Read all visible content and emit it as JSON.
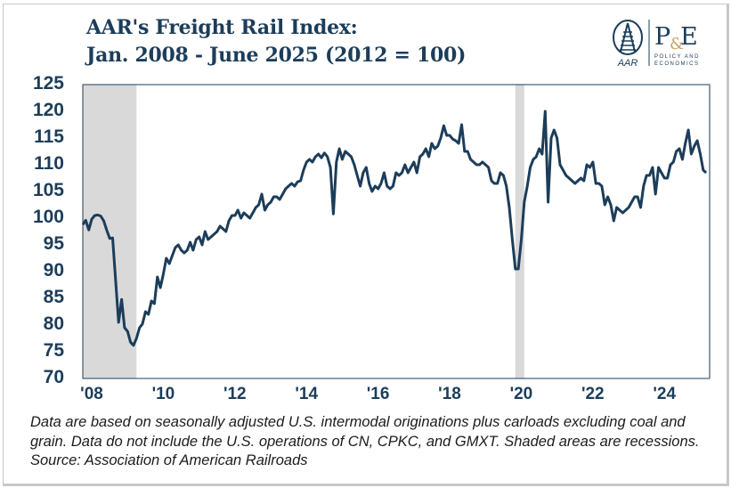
{
  "chart_data": {
    "type": "line",
    "title": "AAR's Freight Rail Index:",
    "subtitle": "Jan. 2008 - June 2025 (2012 = 100)",
    "xlabel": "",
    "ylabel": "",
    "ylim": [
      70,
      125
    ],
    "yticks": [
      "125",
      "120",
      "115",
      "110",
      "105",
      "100",
      "95",
      "90",
      "85",
      "80",
      "75",
      "70"
    ],
    "xticks": [
      "'08",
      "'10",
      "'12",
      "'14",
      "'16",
      "'18",
      "'20",
      "'22",
      "'24"
    ],
    "x_start": "2008-01",
    "x_end": "2025-06",
    "frequency": "monthly",
    "grid": false,
    "line_color": "#1c3d5a",
    "recession_color": "#d9d9d9",
    "recessions": [
      [
        "2008-01",
        "2009-06"
      ],
      [
        "2020-02",
        "2020-04"
      ]
    ],
    "monthly_values": {
      "2008": [
        98.8,
        99.6,
        97.8,
        99.8,
        100.5,
        100.6,
        100.4,
        99.5,
        97.8,
        96.2,
        96.3,
        88.5
      ],
      "2009": [
        80.5,
        84.8,
        79.5,
        78.8,
        76.8,
        76.2,
        77.5,
        79.5,
        80.2,
        82.5,
        82,
        84.5
      ],
      "2010": [
        84,
        89,
        87,
        89.5,
        92.5,
        91.5,
        93,
        94.5,
        95,
        94,
        93.5,
        94
      ],
      "2011": [
        95.5,
        94,
        96,
        96.5,
        95,
        97.5,
        96,
        96.5,
        97,
        97.5,
        98.5,
        98
      ],
      "2012": [
        97.5,
        99.5,
        100.5,
        100.5,
        101.5,
        100,
        101,
        100.5,
        100,
        101,
        102,
        102.5
      ],
      "2013": [
        104.5,
        101.5,
        102.5,
        103,
        104,
        104,
        103.5,
        104.5,
        105.5,
        106,
        106.5,
        106
      ],
      "2014": [
        106.8,
        107,
        109,
        110.5,
        111,
        110.5,
        111.5,
        112,
        111.3,
        112.2,
        111.5,
        109.5
      ],
      "2015": [
        100.8,
        110.5,
        113,
        111,
        112.5,
        112,
        111.5,
        110,
        108,
        106,
        108.5,
        109.5
      ],
      "2016": [
        106.5,
        105,
        106,
        105.5,
        106.5,
        108.5,
        106,
        105.5,
        106,
        108.5,
        108,
        108.5
      ],
      "2017": [
        110,
        108.5,
        109.5,
        110.5,
        108.5,
        111.5,
        112,
        113,
        111.5,
        114,
        113,
        113.5
      ],
      "2018": [
        115,
        117.3,
        115.5,
        115.5,
        114.8,
        114.5,
        114,
        117.5,
        112.5,
        112.5,
        111,
        110.5
      ],
      "2019": [
        110,
        110,
        110.5,
        110,
        109.5,
        107,
        106.5,
        106.5,
        108.5,
        108,
        106,
        102
      ],
      "2020": [
        96,
        90.5,
        90.5,
        96,
        103,
        106,
        109.5,
        111,
        111.5,
        113,
        112,
        120
      ],
      "2021": [
        103,
        115,
        116.5,
        115,
        110,
        109,
        108,
        107.5,
        107,
        106.5,
        107,
        107.5
      ],
      "2022": [
        107,
        110,
        109.5,
        110.5,
        106.5,
        106.5,
        106,
        102.5,
        104,
        102.5,
        99.5,
        102
      ],
      "2023": [
        101.5,
        101,
        101.5,
        102,
        103,
        104,
        104,
        102,
        106,
        108,
        108,
        109.5
      ],
      "2024": [
        104.5,
        109.5,
        108.5,
        107.5,
        107.5,
        110,
        110.5,
        112.5,
        113,
        111,
        114,
        116.5
      ],
      "2025": [
        112,
        113.5,
        114.5,
        112,
        109,
        108.5
      ]
    }
  },
  "footnote": "Data are based on seasonally adjusted U.S. intermodal originations plus carloads excluding coal and grain. Data do not include the U.S. operations of CN, CPKC, and GMXT. Shaded areas are recessions. Source: Association of American Railroads",
  "logo": {
    "aar": "AAR",
    "pe": "P&E",
    "pe_sub": "POLICY AND ECONOMICS"
  }
}
